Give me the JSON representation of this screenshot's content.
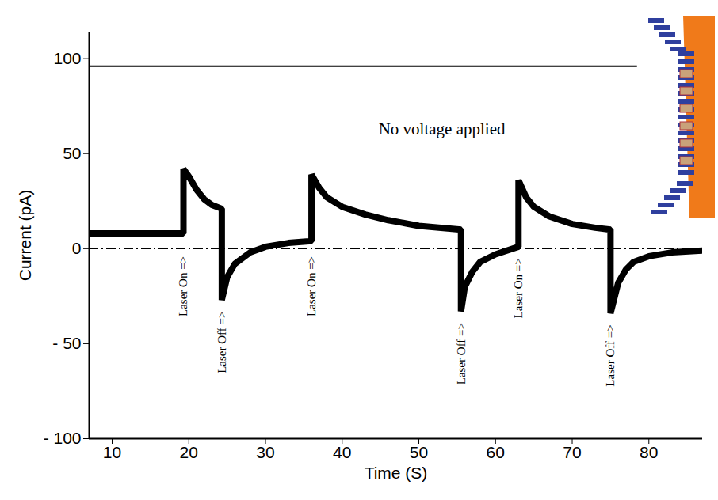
{
  "chart_data": {
    "type": "line",
    "x_label": "Time (S)",
    "y_label": "Current (pA)",
    "xlim": [
      7,
      87
    ],
    "xticks": [
      10,
      20,
      30,
      40,
      50,
      60,
      70,
      80
    ],
    "ylim": [
      -100,
      114
    ],
    "yticks": [
      {
        "value": -100,
        "label": "- 100"
      },
      {
        "value": -50,
        "label": "- 50"
      },
      0,
      50,
      100
    ],
    "grid": false,
    "color": "#000000",
    "x": [
      7,
      19.3,
      19.3,
      20,
      21,
      22,
      23,
      24.3,
      24.3,
      25,
      26,
      28,
      30,
      33,
      36,
      36,
      37,
      38,
      40,
      43,
      46,
      50,
      55.5,
      55.5,
      56,
      57,
      58,
      60,
      63,
      63,
      64,
      65,
      67,
      70,
      73,
      75,
      75,
      76,
      77,
      78,
      80,
      83,
      87
    ],
    "values": [
      8,
      8,
      42,
      38,
      31,
      26,
      23,
      21,
      -27,
      -15,
      -8,
      -2,
      1,
      3,
      4,
      39,
      32,
      27,
      22,
      18,
      15,
      12,
      10,
      -33,
      -20,
      -12,
      -7,
      -3,
      1,
      36,
      27,
      22,
      17,
      13,
      11,
      10,
      -34,
      -18,
      -11,
      -7,
      -4,
      -2,
      -1
    ],
    "hlines": [
      {
        "y": 96,
        "x": [
          7,
          78.5
        ],
        "line_style": "solid"
      },
      {
        "y": 0,
        "x": [
          7,
          87
        ],
        "line_style": "dashdot"
      }
    ],
    "events": [
      {
        "x": 19.3,
        "label": "Laser On =>"
      },
      {
        "x": 24.3,
        "label": "Laser Off =>"
      },
      {
        "x": 36,
        "label": "Laser On =>"
      },
      {
        "x": 55.5,
        "label": "Laser Off =>"
      },
      {
        "x": 63,
        "label": "Laser On =>"
      },
      {
        "x": 75,
        "label": "Laser Off =>"
      }
    ],
    "annotations": [
      {
        "text": "No voltage applied",
        "x": 53,
        "y": 63
      }
    ]
  }
}
